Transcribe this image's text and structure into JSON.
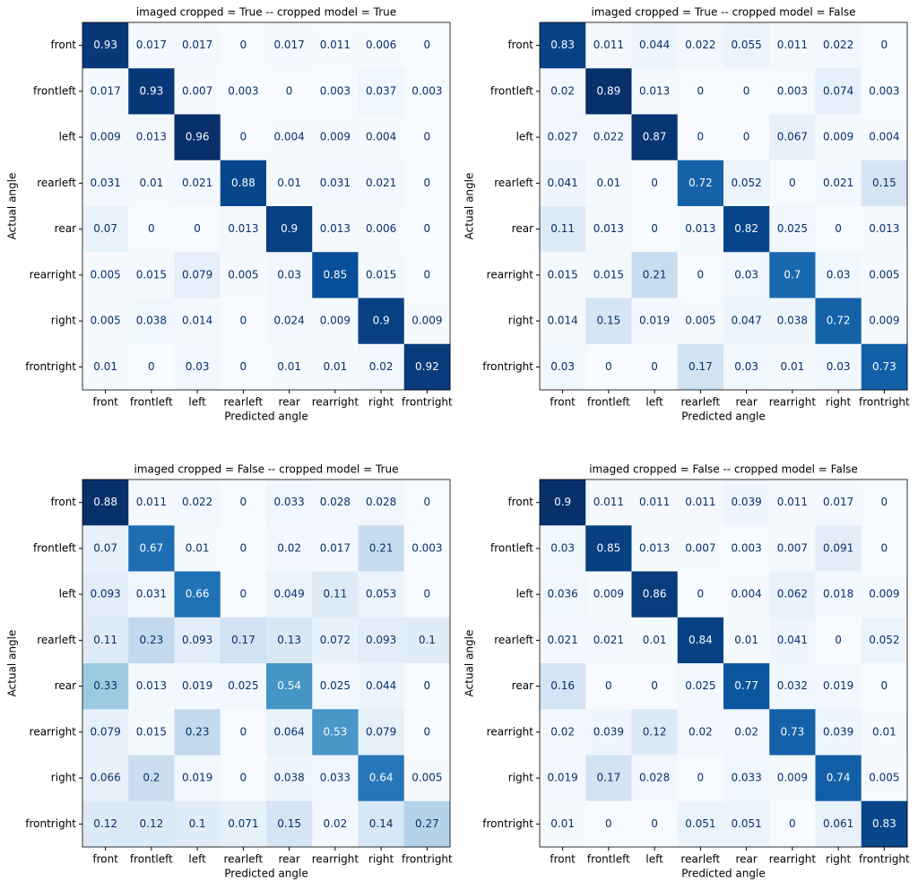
{
  "chart_data": [
    {
      "type": "heatmap",
      "title": "imaged cropped = True -- cropped model = True",
      "x_label": "Predicted angle",
      "y_label": "Actual angle",
      "colormap": "Blues",
      "x_categories": [
        "front",
        "frontleft",
        "left",
        "rearleft",
        "rear",
        "rearright",
        "right",
        "frontright"
      ],
      "y_categories": [
        "front",
        "frontleft",
        "left",
        "rearleft",
        "rear",
        "rearright",
        "right",
        "frontright"
      ],
      "values": [
        [
          0.93,
          0.017,
          0.017,
          0,
          0.017,
          0.011,
          0.006,
          0
        ],
        [
          0.017,
          0.93,
          0.007,
          0.003,
          0,
          0.003,
          0.037,
          0.003
        ],
        [
          0.009,
          0.013,
          0.96,
          0,
          0.004,
          0.009,
          0.004,
          0
        ],
        [
          0.031,
          0.01,
          0.021,
          0.88,
          0.01,
          0.031,
          0.021,
          0
        ],
        [
          0.07,
          0,
          0,
          0.013,
          0.9,
          0.013,
          0.006,
          0
        ],
        [
          0.005,
          0.015,
          0.079,
          0.005,
          0.03,
          0.85,
          0.015,
          0
        ],
        [
          0.005,
          0.038,
          0.014,
          0,
          0.024,
          0.009,
          0.9,
          0.009
        ],
        [
          0.01,
          0,
          0.03,
          0,
          0.01,
          0.01,
          0.02,
          0.92
        ]
      ]
    },
    {
      "type": "heatmap",
      "title": "imaged cropped = True -- cropped model = False",
      "x_label": "Predicted angle",
      "y_label": "Actual angle",
      "colormap": "Blues",
      "x_categories": [
        "front",
        "frontleft",
        "left",
        "rearleft",
        "rear",
        "rearright",
        "right",
        "frontright"
      ],
      "y_categories": [
        "front",
        "frontleft",
        "left",
        "rearleft",
        "rear",
        "rearright",
        "right",
        "frontright"
      ],
      "values": [
        [
          0.83,
          0.011,
          0.044,
          0.022,
          0.055,
          0.011,
          0.022,
          0
        ],
        [
          0.02,
          0.89,
          0.013,
          0,
          0,
          0.003,
          0.074,
          0.003
        ],
        [
          0.027,
          0.022,
          0.87,
          0,
          0,
          0.067,
          0.009,
          0.004
        ],
        [
          0.041,
          0.01,
          0,
          0.72,
          0.052,
          0,
          0.021,
          0.15
        ],
        [
          0.11,
          0.013,
          0,
          0.013,
          0.82,
          0.025,
          0,
          0.013
        ],
        [
          0.015,
          0.015,
          0.21,
          0,
          0.03,
          0.7,
          0.03,
          0.005
        ],
        [
          0.014,
          0.15,
          0.019,
          0.005,
          0.047,
          0.038,
          0.72,
          0.009
        ],
        [
          0.03,
          0,
          0,
          0.17,
          0.03,
          0.01,
          0.03,
          0.73
        ]
      ]
    },
    {
      "type": "heatmap",
      "title": "imaged cropped = False -- cropped model = True",
      "x_label": "Predicted angle",
      "y_label": "Actual angle",
      "colormap": "Blues",
      "x_categories": [
        "front",
        "frontleft",
        "left",
        "rearleft",
        "rear",
        "rearright",
        "right",
        "frontright"
      ],
      "y_categories": [
        "front",
        "frontleft",
        "left",
        "rearleft",
        "rear",
        "rearright",
        "right",
        "frontright"
      ],
      "values": [
        [
          0.88,
          0.011,
          0.022,
          0,
          0.033,
          0.028,
          0.028,
          0
        ],
        [
          0.07,
          0.67,
          0.01,
          0,
          0.02,
          0.017,
          0.21,
          0.003
        ],
        [
          0.093,
          0.031,
          0.66,
          0,
          0.049,
          0.11,
          0.053,
          0
        ],
        [
          0.11,
          0.23,
          0.093,
          0.17,
          0.13,
          0.072,
          0.093,
          0.1
        ],
        [
          0.33,
          0.013,
          0.019,
          0.025,
          0.54,
          0.025,
          0.044,
          0
        ],
        [
          0.079,
          0.015,
          0.23,
          0,
          0.064,
          0.53,
          0.079,
          0
        ],
        [
          0.066,
          0.2,
          0.019,
          0,
          0.038,
          0.033,
          0.64,
          0.005
        ],
        [
          0.12,
          0.12,
          0.1,
          0.071,
          0.15,
          0.02,
          0.14,
          0.27
        ]
      ]
    },
    {
      "type": "heatmap",
      "title": "imaged cropped = False -- cropped model = False",
      "x_label": "Predicted angle",
      "y_label": "Actual angle",
      "colormap": "Blues",
      "x_categories": [
        "front",
        "frontleft",
        "left",
        "rearleft",
        "rear",
        "rearright",
        "right",
        "frontright"
      ],
      "y_categories": [
        "front",
        "frontleft",
        "left",
        "rearleft",
        "rear",
        "rearright",
        "right",
        "frontright"
      ],
      "values": [
        [
          0.9,
          0.011,
          0.011,
          0.011,
          0.039,
          0.011,
          0.017,
          0
        ],
        [
          0.03,
          0.85,
          0.013,
          0.007,
          0.003,
          0.007,
          0.091,
          0
        ],
        [
          0.036,
          0.009,
          0.86,
          0,
          0.004,
          0.062,
          0.018,
          0.009
        ],
        [
          0.021,
          0.021,
          0.01,
          0.84,
          0.01,
          0.041,
          0,
          0.052
        ],
        [
          0.16,
          0,
          0,
          0.025,
          0.77,
          0.032,
          0.019,
          0
        ],
        [
          0.02,
          0.039,
          0.12,
          0.02,
          0.02,
          0.73,
          0.039,
          0.01
        ],
        [
          0.019,
          0.17,
          0.028,
          0,
          0.033,
          0.009,
          0.74,
          0.005
        ],
        [
          0.01,
          0,
          0,
          0.051,
          0.051,
          0,
          0.061,
          0.83
        ]
      ]
    }
  ]
}
